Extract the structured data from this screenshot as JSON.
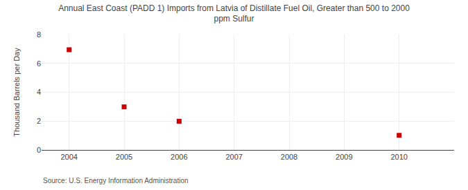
{
  "chart_data": {
    "type": "scatter",
    "title": "Annual East Coast (PADD 1) Imports from Latvia of Distillate Fuel Oil, Greater than 500 to 2000\nppm Sulfur",
    "y_label": "Thousand Barrels per Day",
    "annotations": [
      "Source: U.S. Energy Information Administration"
    ],
    "x": [
      2004,
      2005,
      2006,
      2010
    ],
    "values": [
      6.946,
      2.986,
      1.986,
      1.014
    ],
    "color": "#CC0000",
    "marker": "square",
    "xlim": [
      2003.5,
      2011.0
    ],
    "xticks": [
      2004,
      2005,
      2006,
      2007,
      2008,
      2009,
      2010
    ],
    "ylim": [
      0,
      8
    ],
    "yticks": [
      0,
      2,
      4,
      6,
      8
    ],
    "grid": true
  }
}
